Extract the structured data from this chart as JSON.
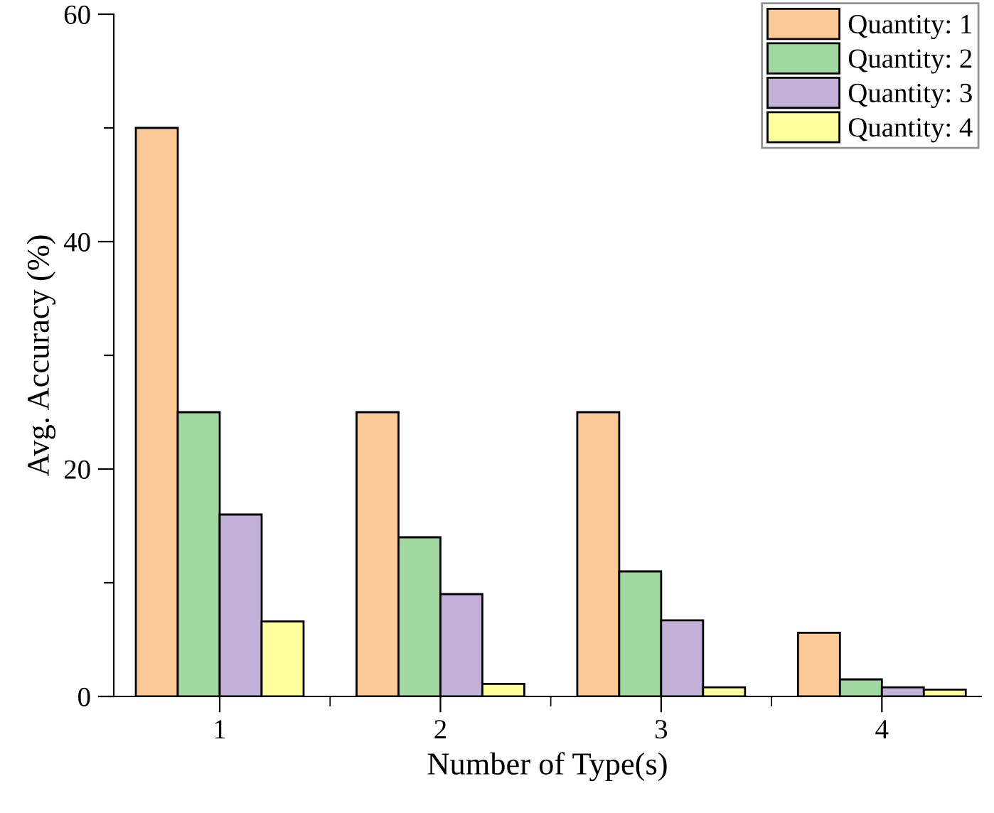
{
  "chart_data": {
    "type": "bar",
    "xlabel": "Number of Type(s)",
    "ylabel": "Avg. Accuracy (%)",
    "categories": [
      "1",
      "2",
      "3",
      "4"
    ],
    "series": [
      {
        "name": "Quantity: 1",
        "color": "#fcc896",
        "values": [
          50,
          25,
          25,
          5.6
        ]
      },
      {
        "name": "Quantity: 2",
        "color": "#a0d8a0",
        "values": [
          25,
          14,
          11,
          1.5
        ]
      },
      {
        "name": "Quantity: 3",
        "color": "#c2b0d8",
        "values": [
          16,
          9,
          6.7,
          0.8
        ]
      },
      {
        "name": "Quantity: 4",
        "color": "#ffff9e",
        "values": [
          6.6,
          1.1,
          0.8,
          0.6
        ]
      }
    ],
    "ylim": [
      0,
      60
    ],
    "yticks": [
      0,
      {
        "value": 10,
        "label": null
      },
      20,
      {
        "value": 30,
        "label": null
      },
      40,
      {
        "value": 50,
        "label": null
      },
      60
    ],
    "grid": false,
    "legend": "top right"
  }
}
